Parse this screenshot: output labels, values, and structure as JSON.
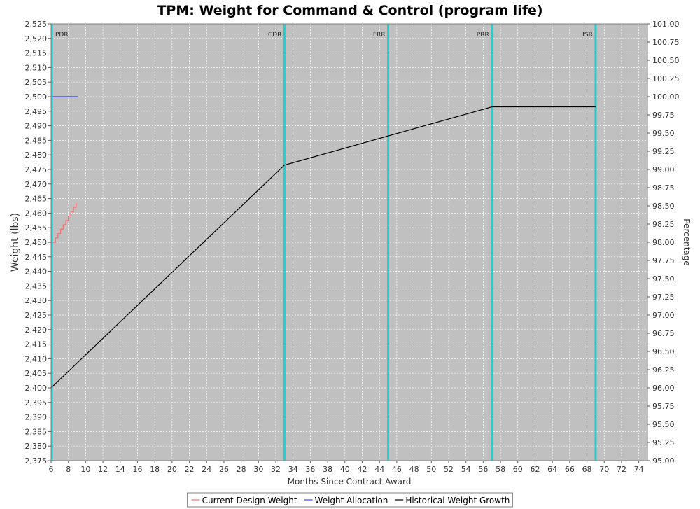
{
  "chart_data": {
    "type": "line",
    "title": "TPM: Weight for Command & Control (program life)",
    "xlabel": "Months Since Contract Award",
    "ylabel": "Weight (lbs)",
    "y2label": "Percentage",
    "xlim": [
      6,
      75
    ],
    "ylim": [
      2375,
      2525
    ],
    "y2lim": [
      95.0,
      101.0
    ],
    "x_ticks": [
      6,
      8,
      10,
      12,
      14,
      16,
      18,
      20,
      22,
      24,
      26,
      28,
      30,
      32,
      34,
      36,
      38,
      40,
      42,
      44,
      46,
      48,
      50,
      52,
      54,
      56,
      58,
      60,
      62,
      64,
      66,
      68,
      70,
      72,
      74
    ],
    "y_ticks": [
      2375,
      2380,
      2385,
      2390,
      2395,
      2400,
      2405,
      2410,
      2415,
      2420,
      2425,
      2430,
      2435,
      2440,
      2445,
      2450,
      2455,
      2460,
      2465,
      2470,
      2475,
      2480,
      2485,
      2490,
      2495,
      2500,
      2505,
      2510,
      2515,
      2520,
      2525
    ],
    "y_tick_labels": [
      "2,375",
      "2,380",
      "2,385",
      "2,390",
      "2,395",
      "2,400",
      "2,405",
      "2,410",
      "2,415",
      "2,420",
      "2,425",
      "2,430",
      "2,435",
      "2,440",
      "2,445",
      "2,450",
      "2,455",
      "2,460",
      "2,465",
      "2,470",
      "2,475",
      "2,480",
      "2,485",
      "2,490",
      "2,495",
      "2,500",
      "2,505",
      "2,510",
      "2,515",
      "2,520",
      "2,525"
    ],
    "y2_ticks": [
      "95.00",
      "95.25",
      "95.50",
      "95.75",
      "96.00",
      "96.25",
      "96.50",
      "96.75",
      "97.00",
      "97.25",
      "97.50",
      "97.75",
      "98.00",
      "98.25",
      "98.50",
      "98.75",
      "99.00",
      "99.25",
      "99.50",
      "99.75",
      "100.00",
      "100.25",
      "100.50",
      "100.75",
      "101.00"
    ],
    "grid": true,
    "milestones": [
      {
        "label": "PDR",
        "x": 6
      },
      {
        "label": "CDR",
        "x": 33
      },
      {
        "label": "FRR",
        "x": 45
      },
      {
        "label": "PRR",
        "x": 57
      },
      {
        "label": "ISR",
        "x": 69
      }
    ],
    "series": [
      {
        "name": "Current Design Weight",
        "color": "#ff6b6b",
        "step": true,
        "x": [
          6.2,
          6.5,
          6.8,
          7.1,
          7.4,
          7.7,
          8.0,
          8.3,
          8.6,
          8.9
        ],
        "y": [
          2450,
          2451.5,
          2453,
          2454.5,
          2456,
          2457.5,
          2459,
          2460.5,
          2462,
          2463.5
        ]
      },
      {
        "name": "Weight Allocation",
        "color": "#3b3bff",
        "step": false,
        "x": [
          6.2,
          9.1
        ],
        "y": [
          2500,
          2500
        ]
      },
      {
        "name": "Historical Weight Growth",
        "color": "#000000",
        "step": false,
        "x": [
          6,
          33,
          57,
          69
        ],
        "y": [
          2400,
          2476.5,
          2496.5,
          2496.5
        ]
      }
    ],
    "legend_position": "bottom-center"
  },
  "colors": {
    "plot_background": "#c0c0c0",
    "milestone": "#20d0d0",
    "grid": "#ffffff"
  }
}
